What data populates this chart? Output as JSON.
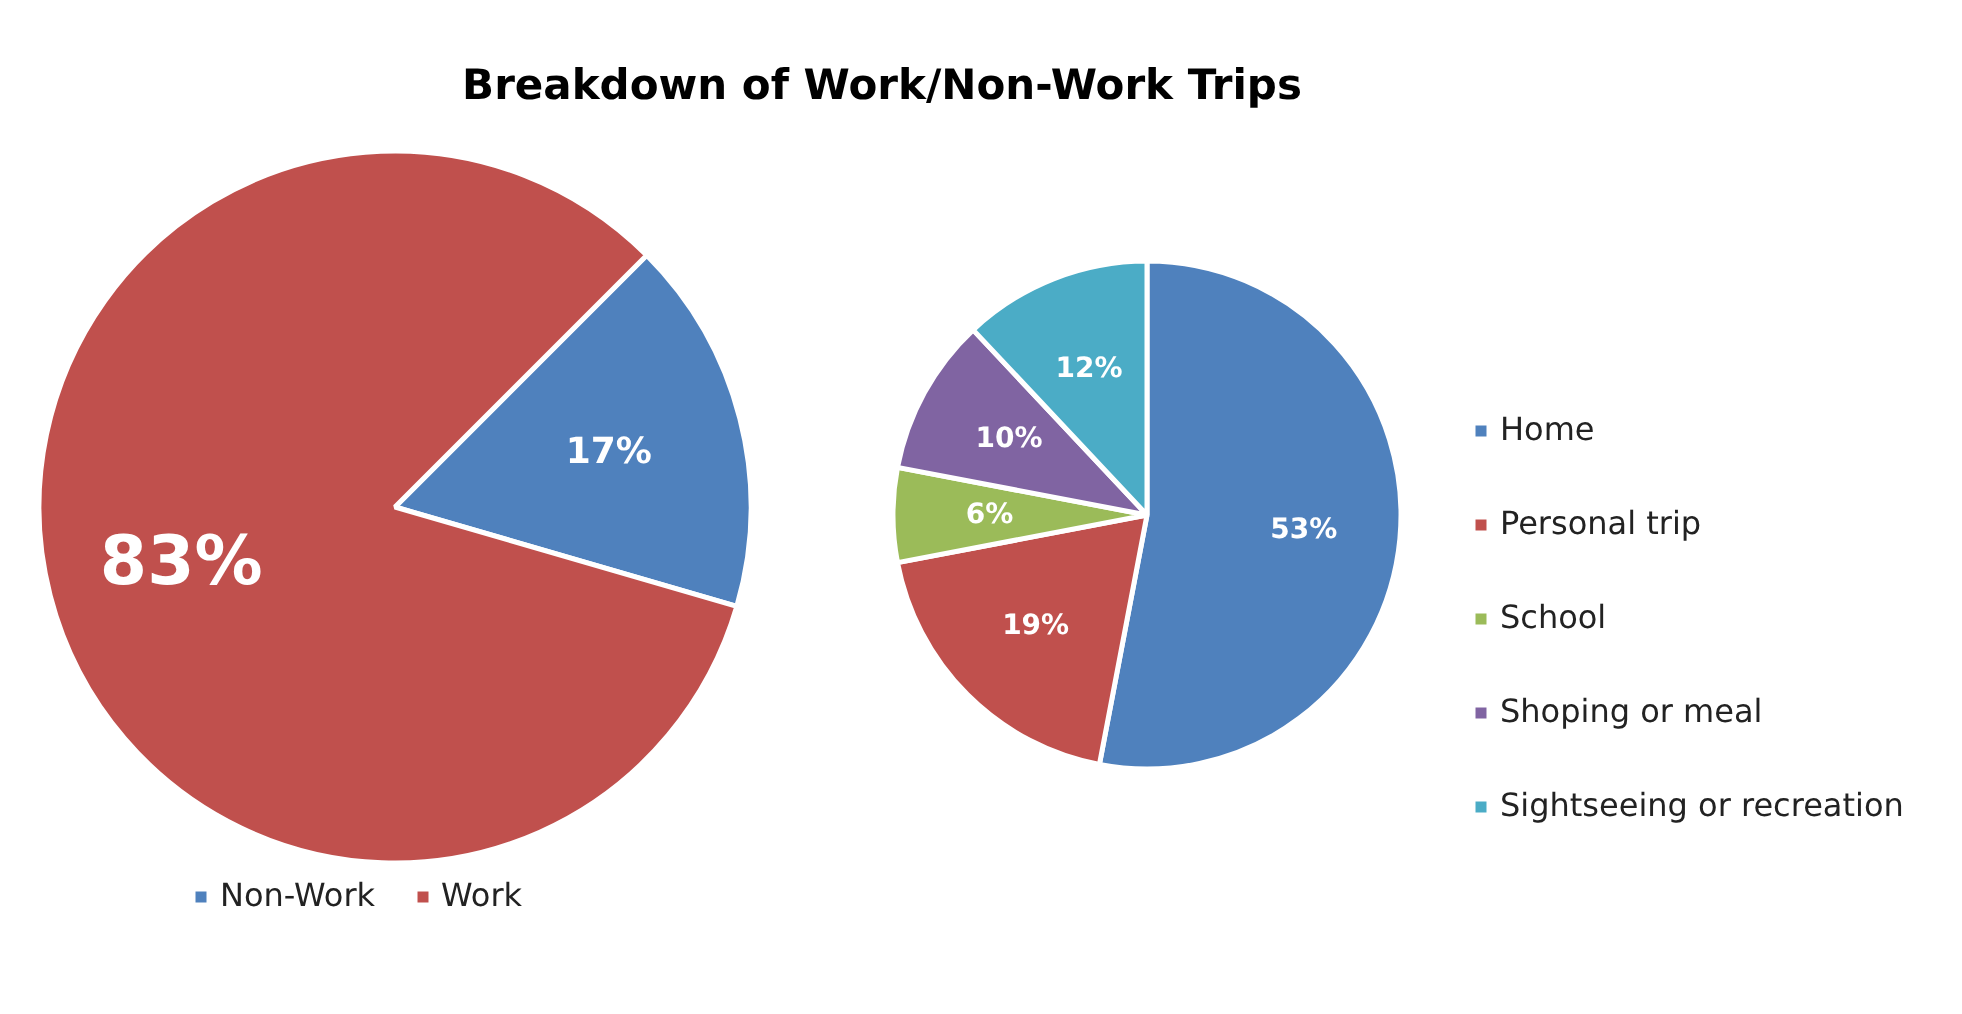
{
  "chart_data": [
    {
      "type": "pie",
      "title": "Breakdown of Work/Non-Work Trips",
      "categories": [
        "Non-Work",
        "Work"
      ],
      "values": [
        17,
        83
      ],
      "colors": [
        "#4f81bd",
        "#c0504d"
      ],
      "value_labels": [
        "17%",
        "83%"
      ],
      "legend": "bottom"
    },
    {
      "type": "pie",
      "categories": [
        "Home",
        "Personal trip",
        "School",
        "Shoping or meal",
        "Sightseeing or recreation"
      ],
      "values": [
        53,
        19,
        6,
        10,
        12
      ],
      "colors": [
        "#4f81bd",
        "#c0504d",
        "#9bbb59",
        "#8064a2",
        "#4bacc6"
      ],
      "value_labels": [
        "53%",
        "19%",
        "6%",
        "10%",
        "12%"
      ],
      "legend": "right"
    }
  ]
}
